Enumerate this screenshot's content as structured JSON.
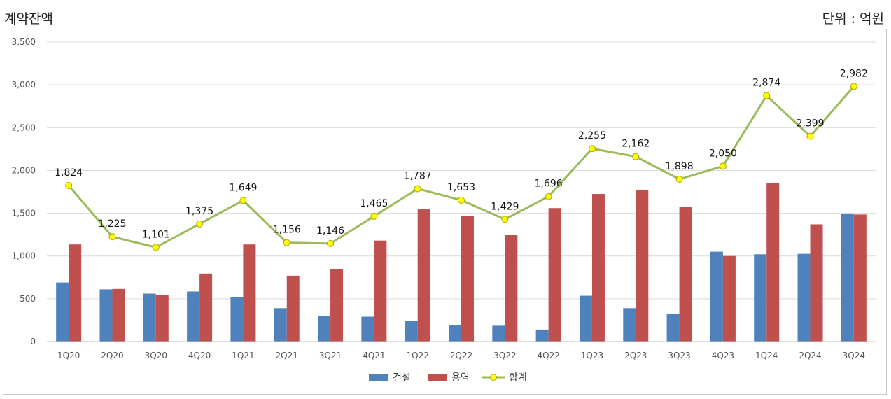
{
  "header": {
    "title": "계약잔액",
    "unit": "단위 : 억원"
  },
  "chart_data": {
    "type": "bar",
    "categories": [
      "1Q20",
      "2Q20",
      "3Q20",
      "4Q20",
      "1Q21",
      "2Q21",
      "3Q21",
      "4Q21",
      "1Q22",
      "2Q22",
      "3Q22",
      "4Q22",
      "1Q23",
      "2Q23",
      "3Q23",
      "4Q23",
      "1Q24",
      "2Q24",
      "3Q24"
    ],
    "series": [
      {
        "name": "건설",
        "kind": "bar",
        "color": "#4f81bd",
        "values": [
          690,
          610,
          560,
          585,
          520,
          390,
          300,
          290,
          240,
          190,
          185,
          140,
          535,
          390,
          320,
          1050,
          1020,
          1025,
          1495
        ]
      },
      {
        "name": "용역",
        "kind": "bar",
        "color": "#c0504d",
        "values": [
          1135,
          615,
          545,
          795,
          1135,
          770,
          845,
          1180,
          1545,
          1465,
          1245,
          1560,
          1725,
          1775,
          1575,
          1000,
          1855,
          1370,
          1485
        ]
      },
      {
        "name": "합계",
        "kind": "line",
        "color": "#9bbb59",
        "marker_color": "#ffff00",
        "values": [
          1824,
          1225,
          1101,
          1375,
          1649,
          1156,
          1146,
          1465,
          1787,
          1653,
          1429,
          1696,
          2255,
          2162,
          1898,
          2050,
          2874,
          2399,
          2982
        ],
        "labels": [
          "1,824",
          "1,225",
          "1,101",
          "1,375",
          "1,649",
          "1,156",
          "1,146",
          "1,465",
          "1,787",
          "1,653",
          "1,429",
          "1,696",
          "2,255",
          "2,162",
          "1,898",
          "2,050",
          "2,874",
          "2,399",
          "2,982"
        ]
      }
    ],
    "y_ticks": [
      "0",
      "500",
      "1,000",
      "1,500",
      "2,000",
      "2,500",
      "3,000",
      "3,500"
    ],
    "ylim": [
      0,
      3500
    ],
    "grid": true,
    "legend_position": "bottom"
  }
}
